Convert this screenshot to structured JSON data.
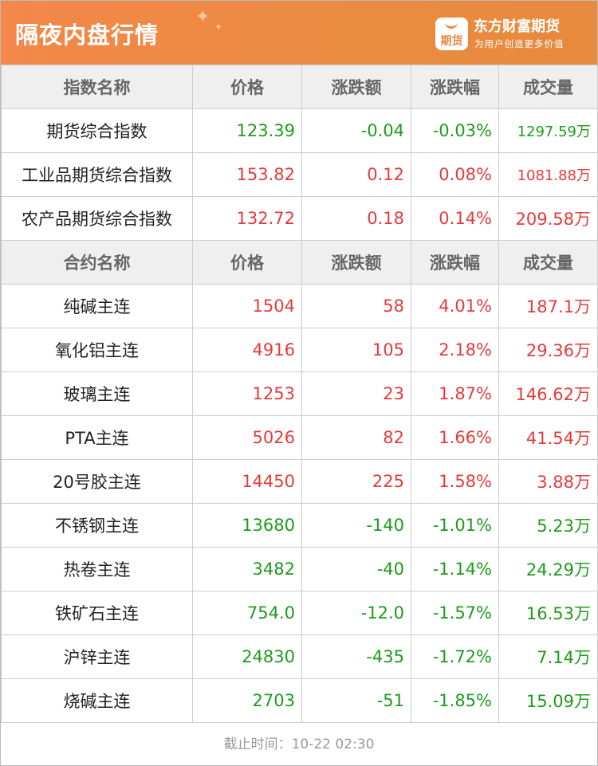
{
  "header": {
    "title": "隔夜内盘行情",
    "brand": "东方财富期货",
    "slogan": "为用户创造更多价值",
    "logo_text": "期货"
  },
  "colors": {
    "up": "#e63a3a",
    "down": "#1c9c1c",
    "header": "#ea8c40"
  },
  "index_table": {
    "headers": [
      "指数名称",
      "价格",
      "涨跌额",
      "涨跌幅",
      "成交量"
    ],
    "rows": [
      {
        "name": "期货综合指数",
        "price": "123.39",
        "change": "-0.04",
        "pct": "-0.03%",
        "volume": "1297.59万",
        "dir": "down"
      },
      {
        "name": "工业品期货综合指数",
        "price": "153.82",
        "change": "0.12",
        "pct": "0.08%",
        "volume": "1081.88万",
        "dir": "up"
      },
      {
        "name": "农产品期货综合指数",
        "price": "132.72",
        "change": "0.18",
        "pct": "0.14%",
        "volume": "209.58万",
        "dir": "up"
      }
    ]
  },
  "contract_table": {
    "headers": [
      "合约名称",
      "价格",
      "涨跌额",
      "涨跌幅",
      "成交量"
    ],
    "rows": [
      {
        "name": "纯碱主连",
        "price": "1504",
        "change": "58",
        "pct": "4.01%",
        "volume": "187.1万",
        "dir": "up"
      },
      {
        "name": "氧化铝主连",
        "price": "4916",
        "change": "105",
        "pct": "2.18%",
        "volume": "29.36万",
        "dir": "up"
      },
      {
        "name": "玻璃主连",
        "price": "1253",
        "change": "23",
        "pct": "1.87%",
        "volume": "146.62万",
        "dir": "up"
      },
      {
        "name": "PTA主连",
        "price": "5026",
        "change": "82",
        "pct": "1.66%",
        "volume": "41.54万",
        "dir": "up"
      },
      {
        "name": "20号胶主连",
        "price": "14450",
        "change": "225",
        "pct": "1.58%",
        "volume": "3.88万",
        "dir": "up"
      },
      {
        "name": "不锈钢主连",
        "price": "13680",
        "change": "-140",
        "pct": "-1.01%",
        "volume": "5.23万",
        "dir": "down"
      },
      {
        "name": "热卷主连",
        "price": "3482",
        "change": "-40",
        "pct": "-1.14%",
        "volume": "24.29万",
        "dir": "down"
      },
      {
        "name": "铁矿石主连",
        "price": "754.0",
        "change": "-12.0",
        "pct": "-1.57%",
        "volume": "16.53万",
        "dir": "down"
      },
      {
        "name": "沪锌主连",
        "price": "24830",
        "change": "-435",
        "pct": "-1.72%",
        "volume": "7.14万",
        "dir": "down"
      },
      {
        "name": "烧碱主连",
        "price": "2703",
        "change": "-51",
        "pct": "-1.85%",
        "volume": "15.09万",
        "dir": "down"
      }
    ]
  },
  "footer": {
    "text": "截止时间：10-22 02:30"
  }
}
